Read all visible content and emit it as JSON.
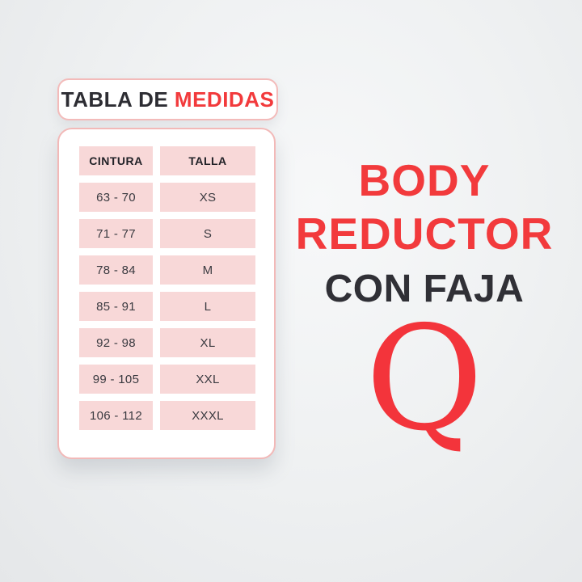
{
  "size_chart": {
    "title_dark": "TABLA DE ",
    "title_red": "MEDIDAS"
  },
  "chart_data": {
    "type": "table",
    "title": "TABLA DE MEDIDAS",
    "columns": [
      "CINTURA",
      "TALLA"
    ],
    "rows": [
      [
        "63 - 70",
        "XS"
      ],
      [
        "71 - 77",
        "S"
      ],
      [
        "78 - 84",
        "M"
      ],
      [
        "85 - 91",
        "L"
      ],
      [
        "92 - 98",
        "XL"
      ],
      [
        "99 - 105",
        "XXL"
      ],
      [
        "106 - 112",
        "XXXL"
      ]
    ]
  },
  "product": {
    "name_line1": "BODY",
    "name_line2": "REDUCTOR",
    "subtitle": "CON FAJA",
    "brand_initial": "Q"
  },
  "colors": {
    "accent_red": "#f23a3c",
    "dark_text": "#303036",
    "cell_pink": "#f8d8d8",
    "card_border_pink": "#f2b9b8",
    "background_gray": "#eef0f1"
  }
}
